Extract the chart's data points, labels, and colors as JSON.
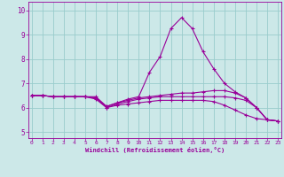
{
  "xlabel": "Windchill (Refroidissement éolien,°C)",
  "background_color": "#cce8e8",
  "line_color": "#990099",
  "grid_color": "#99cccc",
  "x_ticks": [
    0,
    1,
    2,
    3,
    4,
    5,
    6,
    7,
    8,
    9,
    10,
    11,
    12,
    13,
    14,
    15,
    16,
    17,
    18,
    19,
    20,
    21,
    22,
    23
  ],
  "y_ticks": [
    5,
    6,
    7,
    8,
    9,
    10
  ],
  "xlim": [
    -0.3,
    23.3
  ],
  "ylim": [
    4.75,
    10.35
  ],
  "series": [
    {
      "x": [
        0,
        1,
        2,
        3,
        4,
        5,
        6,
        7,
        8,
        9,
        10,
        11,
        12,
        13,
        14,
        15,
        16,
        17,
        18,
        19,
        20,
        21,
        22,
        23
      ],
      "y": [
        6.5,
        6.5,
        6.45,
        6.45,
        6.45,
        6.45,
        6.45,
        6.05,
        6.2,
        6.35,
        6.45,
        7.45,
        8.1,
        9.25,
        9.7,
        9.25,
        8.3,
        7.6,
        7.0,
        6.65,
        6.4,
        6.0,
        5.5,
        5.45
      ]
    },
    {
      "x": [
        0,
        1,
        2,
        3,
        4,
        5,
        6,
        7,
        8,
        9,
        10,
        11,
        12,
        13,
        14,
        15,
        16,
        17,
        18,
        19,
        20,
        21,
        22,
        23
      ],
      "y": [
        6.5,
        6.5,
        6.45,
        6.45,
        6.45,
        6.45,
        6.4,
        6.05,
        6.2,
        6.3,
        6.4,
        6.45,
        6.5,
        6.55,
        6.6,
        6.6,
        6.65,
        6.7,
        6.7,
        6.6,
        6.4,
        6.0,
        5.5,
        5.45
      ]
    },
    {
      "x": [
        0,
        1,
        2,
        3,
        4,
        5,
        6,
        7,
        8,
        9,
        10,
        11,
        12,
        13,
        14,
        15,
        16,
        17,
        18,
        19,
        20,
        21,
        22,
        23
      ],
      "y": [
        6.5,
        6.5,
        6.45,
        6.45,
        6.45,
        6.45,
        6.35,
        6.0,
        6.15,
        6.25,
        6.35,
        6.4,
        6.45,
        6.45,
        6.45,
        6.45,
        6.45,
        6.45,
        6.45,
        6.4,
        6.3,
        6.0,
        5.5,
        5.45
      ]
    },
    {
      "x": [
        0,
        1,
        2,
        3,
        4,
        5,
        6,
        7,
        8,
        9,
        10,
        11,
        12,
        13,
        14,
        15,
        16,
        17,
        18,
        19,
        20,
        21,
        22,
        23
      ],
      "y": [
        6.5,
        6.5,
        6.45,
        6.45,
        6.45,
        6.45,
        6.4,
        6.0,
        6.1,
        6.15,
        6.2,
        6.25,
        6.3,
        6.3,
        6.3,
        6.3,
        6.3,
        6.25,
        6.1,
        5.9,
        5.7,
        5.55,
        5.5,
        5.45
      ]
    }
  ]
}
